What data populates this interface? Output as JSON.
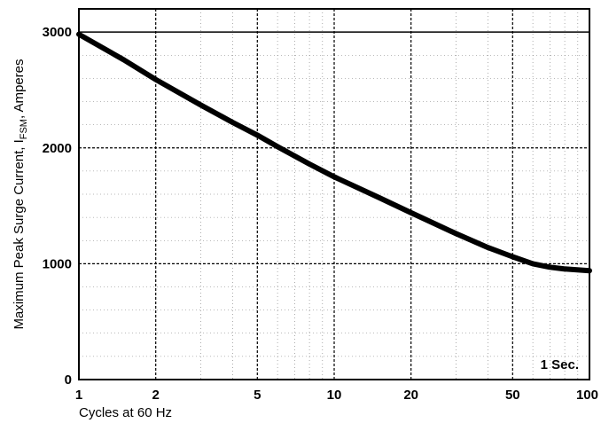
{
  "chart_data": {
    "type": "line",
    "title": "",
    "xlabel": "Cycles at 60 Hz",
    "ylabel_main": "Maximum Peak Surge Current, I",
    "ylabel_sub": "FSM",
    "ylabel_tail": ", Amperes",
    "x_scale": "log",
    "xlim": [
      1,
      100
    ],
    "ylim": [
      0,
      3200
    ],
    "x_ticks": [
      1,
      2,
      5,
      10,
      20,
      50,
      100
    ],
    "x_tick_labels": [
      "1",
      "2",
      "5",
      "10",
      "20",
      "50",
      "100"
    ],
    "y_ticks": [
      0,
      1000,
      2000,
      3000
    ],
    "y_tick_labels": [
      "0",
      "1000",
      "2000",
      "3000"
    ],
    "grid": true,
    "series": [
      {
        "x": [
          1,
          1.5,
          2,
          3,
          4,
          5,
          6,
          8,
          10,
          15,
          20,
          30,
          40,
          50,
          60,
          70,
          80,
          100
        ],
        "values": [
          2980,
          2760,
          2590,
          2370,
          2220,
          2110,
          2010,
          1860,
          1750,
          1570,
          1440,
          1260,
          1140,
          1060,
          1000,
          970,
          955,
          940
        ]
      }
    ],
    "reference_line": {
      "y": 3000
    },
    "annotation": "1 Sec."
  }
}
